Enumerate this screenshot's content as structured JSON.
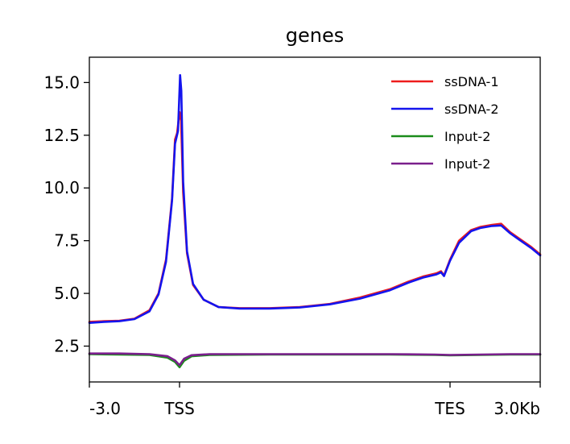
{
  "chart_data": {
    "type": "line",
    "title": "genes",
    "xlabel": "",
    "ylabel": "",
    "x_tick_labels": [
      "-3.0",
      "TSS",
      "TES",
      "3.0Kb"
    ],
    "x_tick_positions": [
      0,
      3,
      12,
      15
    ],
    "xlim": [
      0,
      15
    ],
    "ylim": [
      0.8,
      16.2
    ],
    "y_ticks": [
      2.5,
      5.0,
      7.5,
      10.0,
      12.5,
      15.0
    ],
    "y_tick_labels": [
      "2.5",
      "5.0",
      "7.5",
      "10.0",
      "12.5",
      "15.0"
    ],
    "grid": false,
    "legend_position": "top-right",
    "series": [
      {
        "name": "ssDNA-1",
        "color": "#ee1c1c",
        "points": [
          [
            0,
            3.65
          ],
          [
            0.5,
            3.68
          ],
          [
            1,
            3.7
          ],
          [
            1.5,
            3.8
          ],
          [
            2,
            4.2
          ],
          [
            2.3,
            5.0
          ],
          [
            2.55,
            6.6
          ],
          [
            2.75,
            9.5
          ],
          [
            2.85,
            12.3
          ],
          [
            2.92,
            12.6
          ],
          [
            3.0,
            13.6
          ],
          [
            3.05,
            13.2
          ],
          [
            3.12,
            9.8
          ],
          [
            3.25,
            6.9
          ],
          [
            3.45,
            5.4
          ],
          [
            3.8,
            4.7
          ],
          [
            4.3,
            4.35
          ],
          [
            5,
            4.3
          ],
          [
            6,
            4.3
          ],
          [
            7,
            4.35
          ],
          [
            8,
            4.5
          ],
          [
            9,
            4.8
          ],
          [
            10,
            5.2
          ],
          [
            10.6,
            5.55
          ],
          [
            11.1,
            5.8
          ],
          [
            11.55,
            5.95
          ],
          [
            11.7,
            6.05
          ],
          [
            11.8,
            5.85
          ],
          [
            12.0,
            6.6
          ],
          [
            12.3,
            7.5
          ],
          [
            12.7,
            8.0
          ],
          [
            13.0,
            8.15
          ],
          [
            13.4,
            8.25
          ],
          [
            13.7,
            8.3
          ],
          [
            14.0,
            7.9
          ],
          [
            14.3,
            7.6
          ],
          [
            14.7,
            7.2
          ],
          [
            15,
            6.85
          ]
        ]
      },
      {
        "name": "ssDNA-2",
        "color": "#1414ee",
        "points": [
          [
            0,
            3.6
          ],
          [
            0.5,
            3.65
          ],
          [
            1,
            3.68
          ],
          [
            1.5,
            3.78
          ],
          [
            2,
            4.15
          ],
          [
            2.3,
            4.95
          ],
          [
            2.55,
            6.5
          ],
          [
            2.75,
            9.4
          ],
          [
            2.85,
            12.1
          ],
          [
            2.95,
            12.7
          ],
          [
            3.02,
            15.35
          ],
          [
            3.06,
            14.6
          ],
          [
            3.12,
            10.3
          ],
          [
            3.25,
            7.0
          ],
          [
            3.45,
            5.45
          ],
          [
            3.8,
            4.7
          ],
          [
            4.3,
            4.35
          ],
          [
            5,
            4.28
          ],
          [
            6,
            4.28
          ],
          [
            7,
            4.33
          ],
          [
            8,
            4.48
          ],
          [
            9,
            4.75
          ],
          [
            10,
            5.15
          ],
          [
            10.6,
            5.5
          ],
          [
            11.1,
            5.75
          ],
          [
            11.55,
            5.9
          ],
          [
            11.7,
            6.0
          ],
          [
            11.8,
            5.82
          ],
          [
            12.0,
            6.55
          ],
          [
            12.3,
            7.4
          ],
          [
            12.7,
            7.95
          ],
          [
            13.0,
            8.1
          ],
          [
            13.4,
            8.2
          ],
          [
            13.7,
            8.22
          ],
          [
            14.0,
            7.85
          ],
          [
            14.3,
            7.55
          ],
          [
            14.7,
            7.15
          ],
          [
            15,
            6.8
          ]
        ]
      },
      {
        "name": "Input-2",
        "color": "#1a8c1a",
        "points": [
          [
            0,
            2.12
          ],
          [
            1,
            2.1
          ],
          [
            2,
            2.08
          ],
          [
            2.6,
            1.95
          ],
          [
            2.85,
            1.75
          ],
          [
            3.0,
            1.5
          ],
          [
            3.15,
            1.8
          ],
          [
            3.4,
            2.02
          ],
          [
            4,
            2.08
          ],
          [
            6,
            2.1
          ],
          [
            8,
            2.1
          ],
          [
            10,
            2.1
          ],
          [
            11.5,
            2.08
          ],
          [
            12,
            2.06
          ],
          [
            13,
            2.08
          ],
          [
            14,
            2.1
          ],
          [
            15,
            2.1
          ]
        ]
      },
      {
        "name": "Input-2",
        "color": "#7a1f8c",
        "points": [
          [
            0,
            2.15
          ],
          [
            1,
            2.15
          ],
          [
            2,
            2.12
          ],
          [
            2.6,
            2.02
          ],
          [
            2.85,
            1.82
          ],
          [
            3.0,
            1.6
          ],
          [
            3.15,
            1.9
          ],
          [
            3.4,
            2.07
          ],
          [
            4,
            2.12
          ],
          [
            6,
            2.12
          ],
          [
            8,
            2.12
          ],
          [
            10,
            2.12
          ],
          [
            11.5,
            2.1
          ],
          [
            12,
            2.08
          ],
          [
            13,
            2.1
          ],
          [
            14,
            2.12
          ],
          [
            15,
            2.12
          ]
        ]
      }
    ]
  }
}
